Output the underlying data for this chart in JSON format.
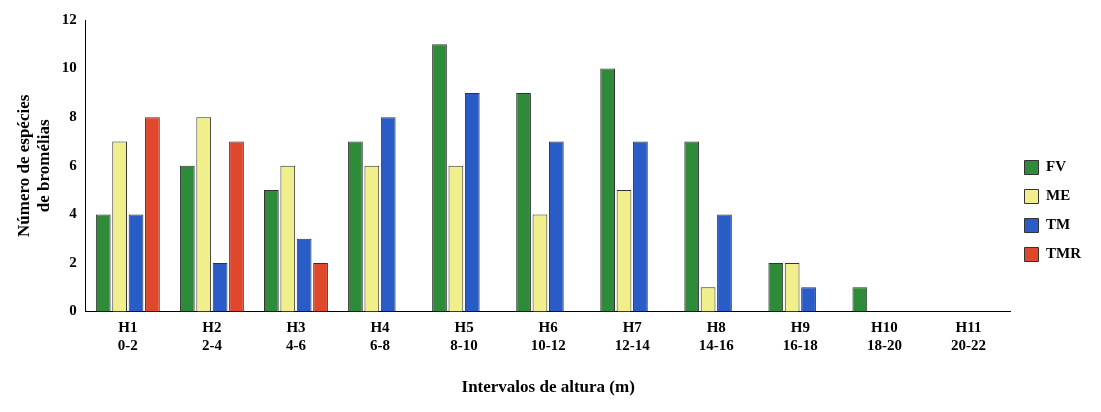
{
  "chart_data": {
    "type": "bar",
    "xlabel": "Intervalos de altura (m)",
    "ylabel": "Número de espécies\nde bromélias",
    "categories": [
      "H1\n0-2",
      "H2\n2-4",
      "H3\n4-6",
      "H4\n6-8",
      "H5\n8-10",
      "H6\n10-12",
      "H7\n12-14",
      "H8\n14-16",
      "H9\n16-18",
      "H10\n18-20",
      "H11\n20-22"
    ],
    "series": [
      {
        "name": "FV",
        "color": "#2e8b3a",
        "values": [
          4,
          6,
          5,
          7,
          11,
          9,
          10,
          7,
          2,
          1,
          null
        ]
      },
      {
        "name": "ME",
        "color": "#f0ef8c",
        "values": [
          7,
          8,
          6,
          6,
          6,
          4,
          5,
          1,
          2,
          null,
          null
        ]
      },
      {
        "name": "TM",
        "color": "#2a5cc8",
        "values": [
          4,
          2,
          3,
          8,
          9,
          7,
          7,
          4,
          1,
          null,
          null
        ]
      },
      {
        "name": "TMR",
        "color": "#e0482e",
        "values": [
          8,
          7,
          2,
          null,
          null,
          null,
          null,
          null,
          null,
          null,
          null
        ]
      }
    ],
    "ylim": [
      0,
      12
    ],
    "yticks": [
      0,
      2,
      4,
      6,
      8,
      10,
      12
    ],
    "grid": false,
    "legend": "right"
  }
}
